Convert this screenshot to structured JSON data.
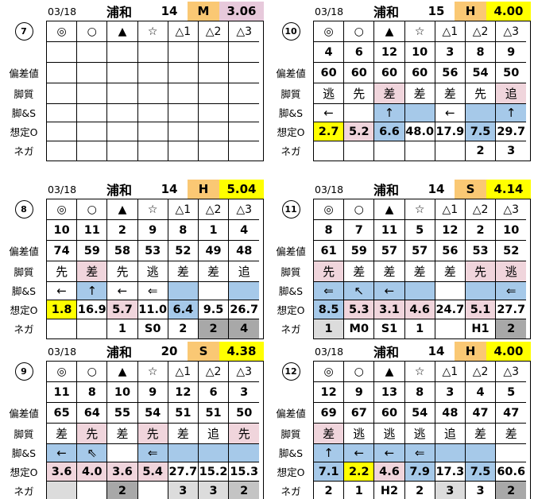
{
  "colors": {
    "orange": "#FAC874",
    "yellow": "#FFFF00",
    "hpink": "#E7C9DB",
    "pink": "#F0D5DC",
    "blue": "#A6C9E9",
    "lgray": "#DCDCDC",
    "mgray": "#C4C4C4",
    "dgray": "#A8A8A8"
  },
  "row_labels": [
    "偏差値",
    "脚質",
    "脚&S",
    "想定O",
    "ネガ"
  ],
  "symbols": [
    "◎",
    "○",
    "▲",
    "☆",
    "△1",
    "△2",
    "△3"
  ],
  "tables": [
    {
      "circle": "7",
      "date": "03/18",
      "venue": "浦和",
      "race": "14",
      "mark": "M",
      "value": "3.06",
      "value_color": "hpink",
      "rows": {
        "numbers": [
          "",
          "",
          "",
          "",
          "",
          "",
          ""
        ],
        "hensachi": [
          "",
          "",
          "",
          "",
          "",
          "",
          ""
        ],
        "kyakushitsu": [
          "",
          "",
          "",
          "",
          "",
          "",
          ""
        ],
        "kyaku_s": [
          "",
          "",
          "",
          "",
          "",
          "",
          ""
        ],
        "soteio": [
          "",
          "",
          "",
          "",
          "",
          "",
          ""
        ],
        "nega": [
          "",
          "",
          "",
          "",
          "",
          "",
          ""
        ]
      }
    },
    {
      "circle": "10",
      "date": "03/18",
      "venue": "浦和",
      "race": "15",
      "mark": "H",
      "value": "4.00",
      "value_color": "yellow",
      "rows": {
        "numbers": [
          "4",
          "6",
          "12",
          "10",
          "3",
          "8",
          "9"
        ],
        "hensachi": [
          "60",
          "60",
          "60",
          "60",
          "56",
          "54",
          "50"
        ],
        "kyakushitsu": [
          "逃",
          "先",
          [
            "差",
            "pink"
          ],
          "差",
          "差",
          "先",
          [
            "追",
            "pink"
          ]
        ],
        "kyaku_s": [
          "←",
          "",
          [
            "↑",
            "blue"
          ],
          [
            "",
            "blue"
          ],
          "←",
          [
            "",
            "blue"
          ],
          [
            "↑",
            "blue"
          ]
        ],
        "soteio": [
          [
            "2.7",
            "yellow"
          ],
          [
            "5.2",
            "pink"
          ],
          [
            "6.6",
            "blue"
          ],
          "48.0",
          "17.9",
          [
            "7.5",
            "blue"
          ],
          "29.7"
        ],
        "nega": [
          "",
          "",
          "",
          "",
          "",
          "2",
          "3"
        ]
      }
    },
    {
      "circle": "8",
      "date": "03/18",
      "venue": "浦和",
      "race": "14",
      "mark": "H",
      "value": "5.04",
      "value_color": "yellow",
      "rows": {
        "numbers": [
          "10",
          "11",
          "2",
          "9",
          "8",
          "1",
          "4"
        ],
        "hensachi": [
          "74",
          "59",
          "58",
          "53",
          "52",
          "49",
          "48"
        ],
        "kyakushitsu": [
          "先",
          [
            "差",
            "pink"
          ],
          "先",
          "逃",
          "差",
          "差",
          "追"
        ],
        "kyaku_s": [
          "←",
          [
            "↑",
            "blue"
          ],
          "←",
          "⇐",
          [
            "",
            "blue"
          ],
          "",
          [
            "",
            "blue"
          ]
        ],
        "soteio": [
          [
            "1.8",
            "yellow"
          ],
          "16.9",
          [
            "5.7",
            "pink"
          ],
          "11.0",
          [
            "6.4",
            "blue"
          ],
          "9.5",
          "26.7"
        ],
        "nega": [
          "",
          "",
          "1",
          "S0",
          "2",
          [
            "2",
            "dgray"
          ],
          [
            "4",
            "dgray"
          ]
        ]
      }
    },
    {
      "circle": "11",
      "date": "03/18",
      "venue": "浦和",
      "race": "14",
      "mark": "S",
      "value": "4.14",
      "value_color": "yellow",
      "rows": {
        "numbers": [
          "8",
          "7",
          "11",
          "5",
          "12",
          "2",
          "10"
        ],
        "hensachi": [
          "61",
          "59",
          "57",
          "57",
          "56",
          "53",
          "52"
        ],
        "kyakushitsu": [
          [
            "先",
            "pink"
          ],
          "差",
          "差",
          "差",
          "差",
          [
            "先",
            "pink"
          ],
          [
            "逃",
            "pink"
          ]
        ],
        "kyaku_s": [
          [
            "⇐",
            "blue"
          ],
          [
            "↖",
            "blue"
          ],
          [
            "←",
            "blue"
          ],
          [
            "",
            "blue"
          ],
          "",
          [
            "",
            "blue"
          ],
          [
            "⇐",
            "blue"
          ]
        ],
        "soteio": [
          [
            "8.5",
            "blue"
          ],
          [
            "5.3",
            "pink"
          ],
          [
            "3.1",
            "pink"
          ],
          [
            "4.6",
            "pink"
          ],
          "24.7",
          [
            "5.1",
            "pink"
          ],
          "27.7"
        ],
        "nega": [
          [
            "1",
            "lgray"
          ],
          "M0",
          "S1",
          "1",
          "",
          "H1",
          [
            "2",
            "dgray"
          ]
        ]
      }
    },
    {
      "circle": "9",
      "date": "03/18",
      "venue": "浦和",
      "race": "20",
      "mark": "S",
      "value": "4.38",
      "value_color": "yellow",
      "rows": {
        "numbers": [
          "11",
          "8",
          "10",
          "9",
          "12",
          "6",
          "3"
        ],
        "hensachi": [
          "65",
          "64",
          "55",
          "54",
          "51",
          "51",
          "50"
        ],
        "kyakushitsu": [
          "差",
          [
            "先",
            "pink"
          ],
          "差",
          [
            "先",
            "pink"
          ],
          "差",
          "追",
          [
            "先",
            "pink"
          ]
        ],
        "kyaku_s": [
          [
            "←",
            "blue"
          ],
          [
            "⇖",
            "blue"
          ],
          "",
          [
            "⇐",
            "blue"
          ],
          [
            "",
            "blue"
          ],
          [
            "",
            "blue"
          ],
          [
            "",
            "blue"
          ]
        ],
        "soteio": [
          [
            "3.6",
            "pink"
          ],
          [
            "4.0",
            "pink"
          ],
          [
            "3.6",
            "pink"
          ],
          [
            "5.4",
            "pink"
          ],
          "27.7",
          "15.2",
          "15.3"
        ],
        "nega": [
          [
            "",
            "lgray"
          ],
          "",
          [
            "2",
            "dgray"
          ],
          "",
          [
            "3",
            "lgray"
          ],
          [
            "3",
            "lgray"
          ],
          [
            "2",
            "mgray"
          ]
        ]
      }
    },
    {
      "circle": "12",
      "date": "03/18",
      "venue": "浦和",
      "race": "14",
      "mark": "H",
      "value": "4.00",
      "value_color": "yellow",
      "rows": {
        "numbers": [
          "12",
          "9",
          "13",
          "8",
          "3",
          "4",
          "5"
        ],
        "hensachi": [
          "69",
          "67",
          "60",
          "54",
          "48",
          "47",
          "47"
        ],
        "kyakushitsu": [
          [
            "差",
            "pink"
          ],
          "逃",
          "逃",
          "逃",
          "追",
          "差",
          "差"
        ],
        "kyaku_s": [
          [
            "↑",
            "blue"
          ],
          [
            "←",
            "blue"
          ],
          [
            "←",
            "blue"
          ],
          [
            "⇐",
            "blue"
          ],
          [
            "",
            "blue"
          ],
          [
            "",
            "blue"
          ],
          ""
        ],
        "soteio": [
          [
            "7.1",
            "blue"
          ],
          [
            "2.2",
            "yellow"
          ],
          [
            "4.6",
            "pink"
          ],
          [
            "7.9",
            "blue"
          ],
          "17.3",
          [
            "7.5",
            "blue"
          ],
          "60.6"
        ],
        "nega": [
          "2",
          "1",
          "H2",
          "2",
          [
            "3",
            "lgray"
          ],
          "3",
          [
            "2",
            "dgray"
          ]
        ]
      }
    }
  ]
}
